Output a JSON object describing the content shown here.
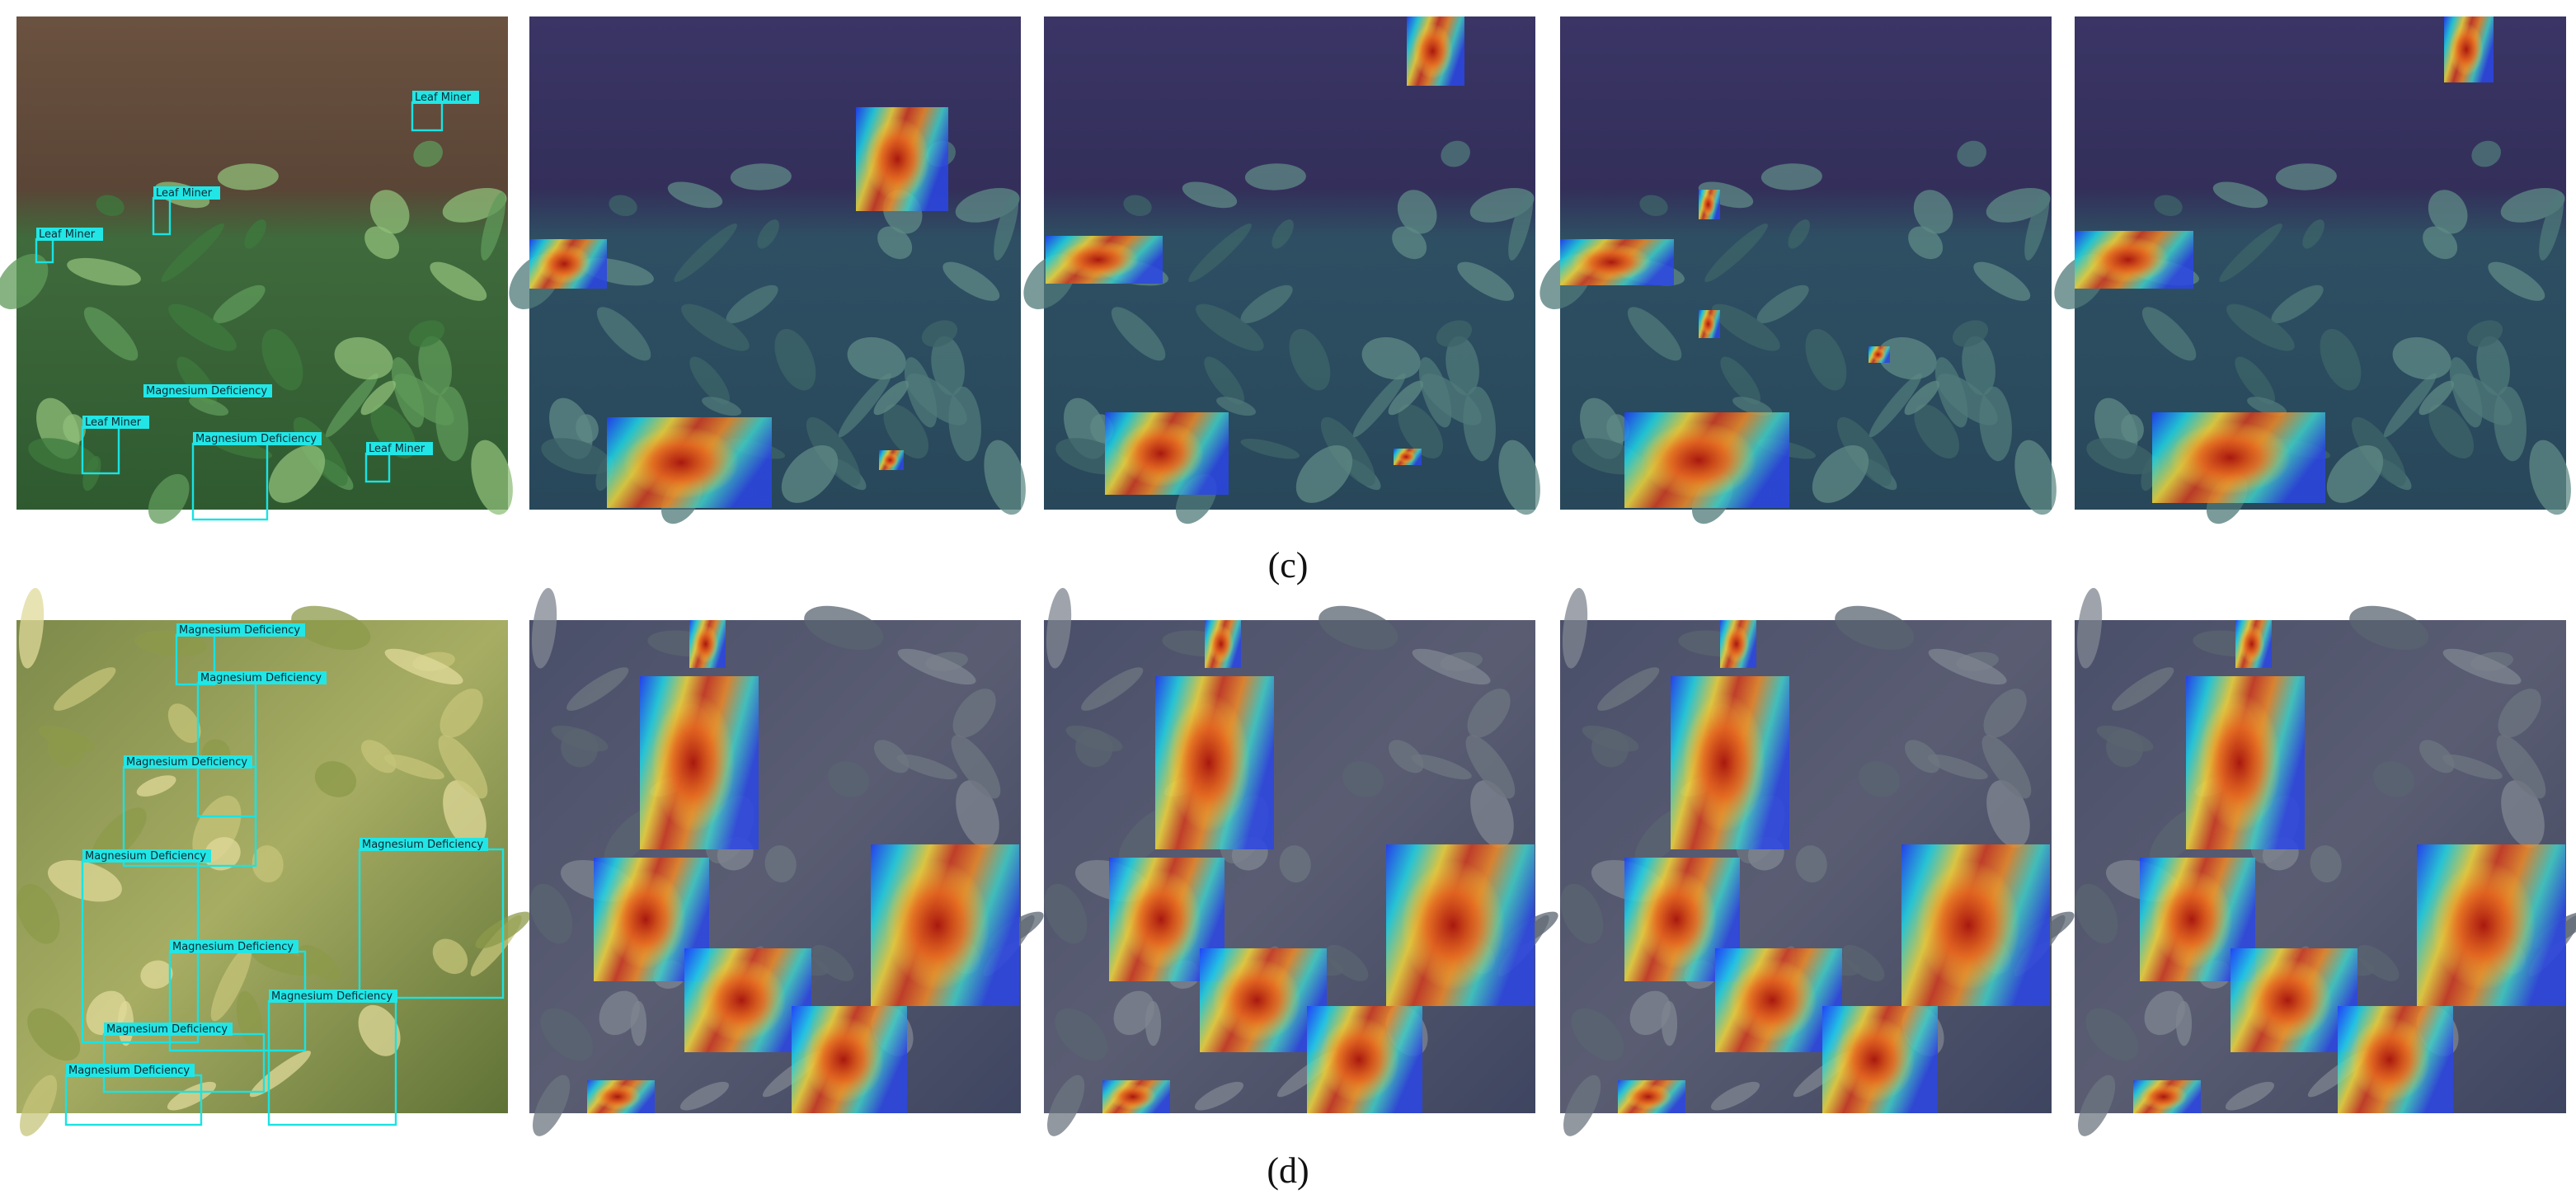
{
  "figure": {
    "rows": [
      {
        "caption": "(c)",
        "detections": [
          {
            "label": "Leaf Miner"
          },
          {
            "label": "Leaf Miner"
          },
          {
            "label": "Leaf Miner"
          },
          {
            "label": "Magnesium Deficiency"
          },
          {
            "label": "Leaf Miner"
          },
          {
            "label": "Magnesium Deficiency"
          },
          {
            "label": "Leaf Miner"
          }
        ]
      },
      {
        "caption": "(d)",
        "detections": [
          {
            "label": "Magnesium Deficiency"
          },
          {
            "label": "Magnesium Deficiency"
          },
          {
            "label": "Magnesium Deficiency"
          },
          {
            "label": "Magnesium Deficiency"
          },
          {
            "label": "Magnesium Deficiency"
          },
          {
            "label": "Magnesium Deficiency"
          },
          {
            "label": "Magnesium Deficiency"
          },
          {
            "label": "Magnesium Deficiency"
          },
          {
            "label": "Magnesium Deficiency"
          }
        ]
      }
    ]
  }
}
